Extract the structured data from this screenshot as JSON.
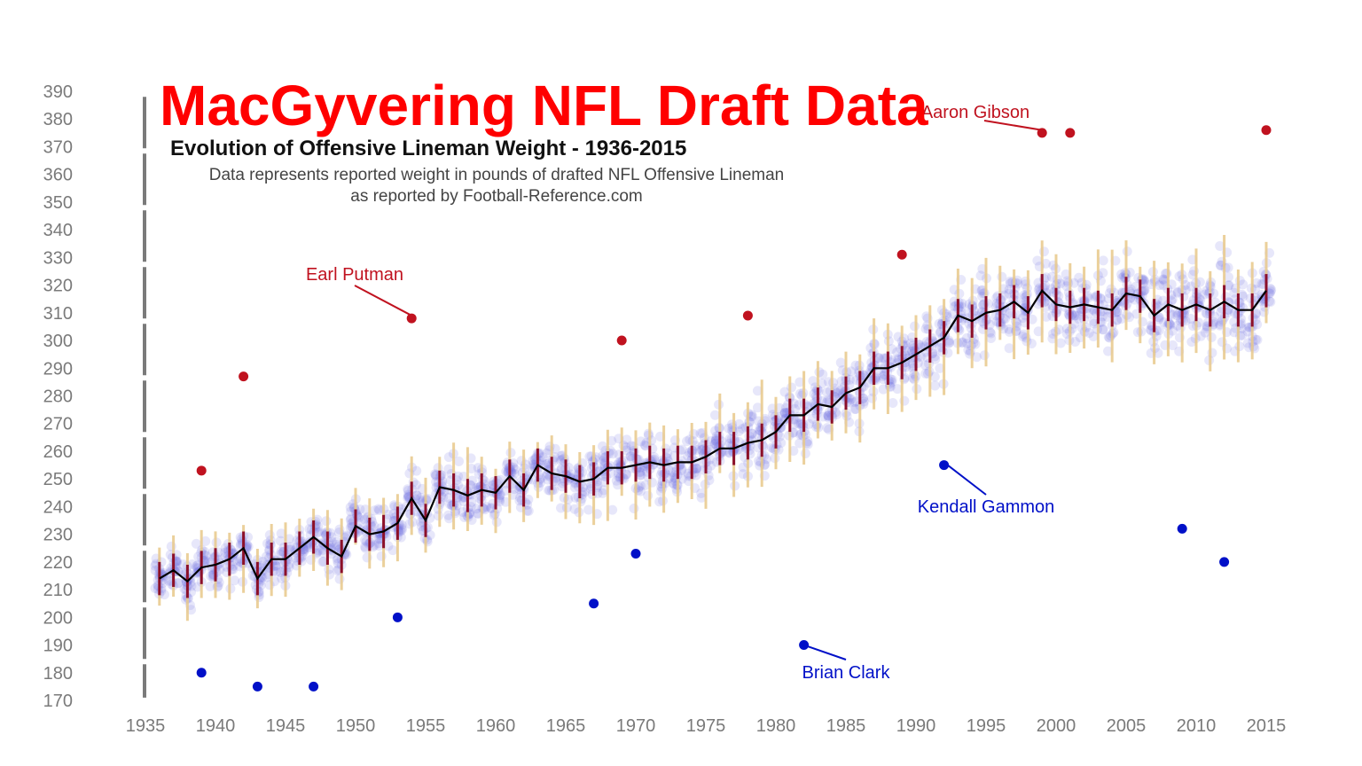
{
  "title": "MacGyvering NFL Draft Data",
  "subtitle": "Evolution of Offensive Lineman Weight - 1936-2015",
  "caption_line1": "Data represents reported weight in pounds of drafted NFL Offensive Lineman",
  "caption_line2": "as reported by Football-Reference.com",
  "colors": {
    "scatter": "#6b6be0",
    "range": "#e8c88a",
    "iqr": "#8b0f2a",
    "mean_line": "#000000",
    "high_outlier": "#c0121f",
    "low_outlier": "#0010c8",
    "axis": "#7a7a7a"
  },
  "chart_data": {
    "type": "line",
    "xlim": [
      1935,
      2015
    ],
    "ylim": [
      170,
      390
    ],
    "x_ticks": [
      "1935",
      "1940",
      "1945",
      "1950",
      "1955",
      "1960",
      "1965",
      "1970",
      "1975",
      "1980",
      "1985",
      "1990",
      "1995",
      "2000",
      "2005",
      "2010",
      "2015"
    ],
    "y_ticks": [
      "170",
      "180",
      "190",
      "200",
      "210",
      "220",
      "230",
      "240",
      "250",
      "260",
      "270",
      "280",
      "290",
      "300",
      "310",
      "320",
      "330",
      "340",
      "350",
      "360",
      "370",
      "380",
      "390"
    ],
    "series": [
      {
        "type": "line",
        "x": [
          1936,
          1937,
          1938,
          1939,
          1940,
          1941,
          1942,
          1943,
          1944,
          1945,
          1946,
          1947,
          1948,
          1949,
          1950,
          1951,
          1952,
          1953,
          1954,
          1955,
          1956,
          1957,
          1958,
          1959,
          1960,
          1961,
          1962,
          1963,
          1964,
          1965,
          1966,
          1967,
          1968,
          1969,
          1970,
          1971,
          1972,
          1973,
          1974,
          1975,
          1976,
          1977,
          1978,
          1979,
          1980,
          1981,
          1982,
          1983,
          1984,
          1985,
          1986,
          1987,
          1988,
          1989,
          1990,
          1991,
          1992,
          1993,
          1994,
          1995,
          1996,
          1997,
          1998,
          1999,
          2000,
          2001,
          2002,
          2003,
          2004,
          2005,
          2006,
          2007,
          2008,
          2009,
          2010,
          2011,
          2012,
          2013,
          2014,
          2015
        ],
        "y": [
          214,
          217,
          213,
          218,
          219,
          221,
          225,
          214,
          221,
          221,
          225,
          229,
          225,
          222,
          233,
          230,
          231,
          234,
          243,
          235,
          247,
          246,
          244,
          246,
          245,
          251,
          246,
          255,
          252,
          251,
          249,
          250,
          254,
          254,
          255,
          256,
          255,
          256,
          256,
          258,
          261,
          261,
          263,
          264,
          267,
          273,
          273,
          277,
          276,
          281,
          283,
          290,
          290,
          292,
          295,
          298,
          301,
          309,
          307,
          310,
          311,
          314,
          310,
          318,
          313,
          312,
          313,
          312,
          311,
          317,
          316,
          309,
          313,
          311,
          313,
          311,
          314,
          311,
          311,
          318
        ]
      }
    ],
    "annotations": [
      {
        "label": "Earl Putman",
        "x": 1954,
        "y": 309,
        "kind": "high"
      },
      {
        "label": "Aaron Gibson",
        "x": 1999,
        "y": 376,
        "kind": "high"
      },
      {
        "label": "Brian Clark",
        "x": 1982,
        "y": 190,
        "kind": "low"
      },
      {
        "label": "Kendall Gammon",
        "x": 1992,
        "y": 256,
        "kind": "low"
      }
    ]
  }
}
